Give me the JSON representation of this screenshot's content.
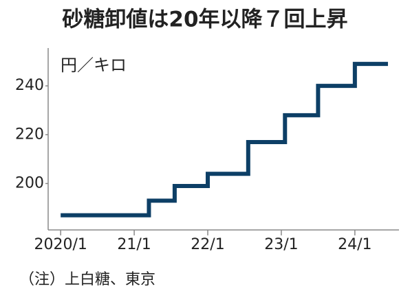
{
  "chart_data": {
    "type": "step-line",
    "title": "砂糖卸値は20年以降７回上昇",
    "unit_label": "円／キロ",
    "note": "（注）上白糖、東京",
    "x": [
      2020.0,
      2021.2,
      2021.55,
      2022.0,
      2022.55,
      2023.05,
      2023.5,
      2024.0,
      2024.45
    ],
    "values": [
      187,
      193,
      199,
      204,
      217,
      228,
      240,
      249,
      249
    ],
    "color": "#0d3f66",
    "xlim": [
      2019.83,
      2024.6
    ],
    "ylim": [
      181,
      255.5
    ],
    "xticks": [
      {
        "value": 2020,
        "label": "2020/1"
      },
      {
        "value": 2021,
        "label": "21/1"
      },
      {
        "value": 2022,
        "label": "22/1"
      },
      {
        "value": 2023,
        "label": "23/1"
      },
      {
        "value": 2024,
        "label": "24/1"
      }
    ],
    "yticks": [
      200,
      220,
      240
    ]
  }
}
